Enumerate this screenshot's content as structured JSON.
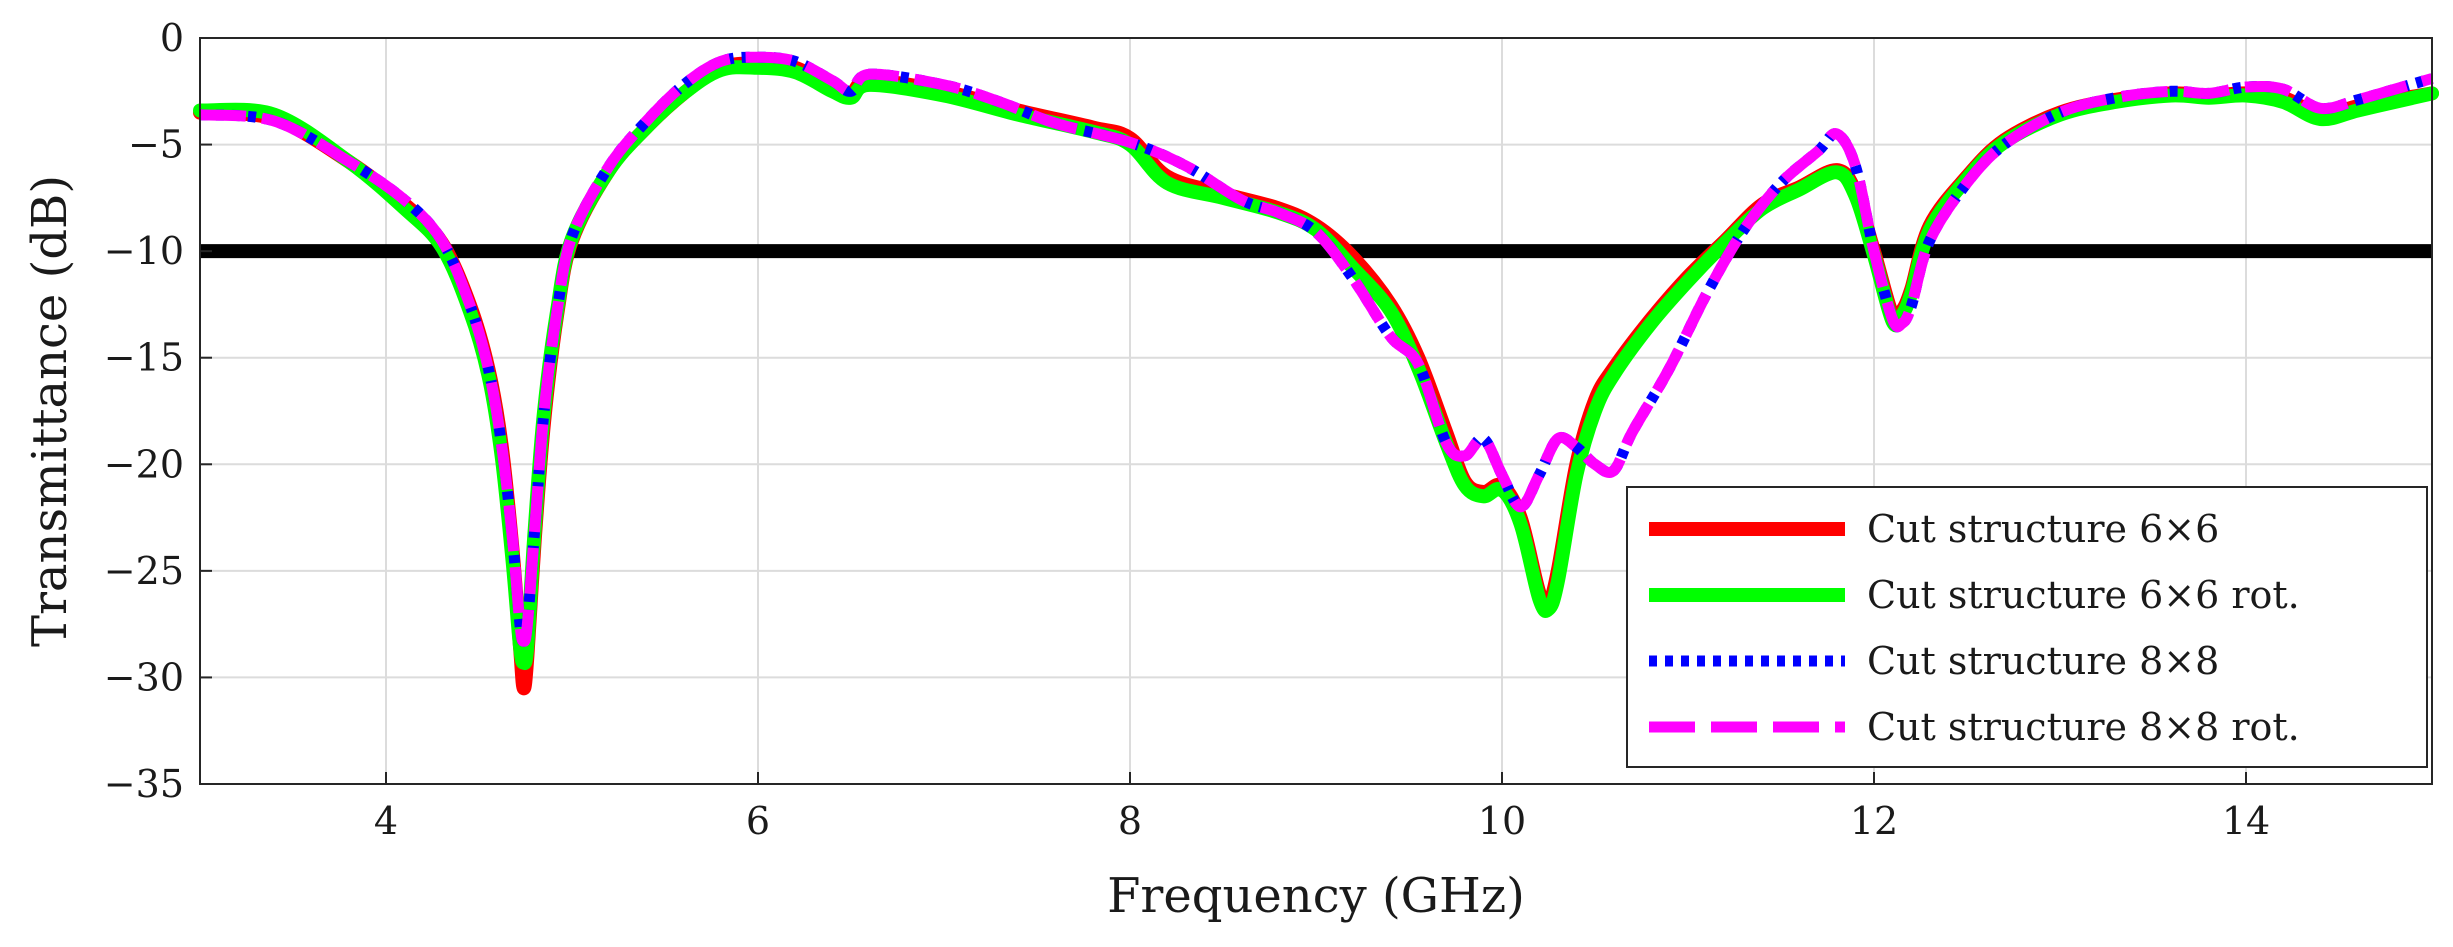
{
  "chart_data": {
    "type": "line",
    "title": "",
    "xlabel": "Frequency (GHz)",
    "ylabel": "Transmittance (dB)",
    "xlim": [
      3,
      15
    ],
    "ylim": [
      -35,
      0
    ],
    "xticks": [
      4,
      6,
      8,
      10,
      12,
      14
    ],
    "xtick_labels": [
      "4",
      "6",
      "8",
      "10",
      "12",
      "14"
    ],
    "yticks": [
      0,
      -5,
      -10,
      -15,
      -20,
      -25,
      -30,
      -35
    ],
    "ytick_labels": [
      "0",
      "−5",
      "−10",
      "−15",
      "−20",
      "−25",
      "−30",
      "−35"
    ],
    "grid": true,
    "legend_position": "bottom-right",
    "reference_line": {
      "y": -10,
      "color": "#000000"
    },
    "series": [
      {
        "name": "Cut structure 6×6",
        "color": "#ff0000",
        "style": "solid",
        "x": [
          3.0,
          3.4,
          3.8,
          4.1,
          4.3,
          4.45,
          4.55,
          4.62,
          4.68,
          4.72,
          4.74,
          4.76,
          4.8,
          4.85,
          4.92,
          5.0,
          5.2,
          5.4,
          5.6,
          5.8,
          6.0,
          6.2,
          6.4,
          6.5,
          6.6,
          7.0,
          7.4,
          7.8,
          8.0,
          8.2,
          8.5,
          8.8,
          9.0,
          9.2,
          9.4,
          9.55,
          9.7,
          9.8,
          9.9,
          10.0,
          10.1,
          10.2,
          10.25,
          10.3,
          10.4,
          10.5,
          10.6,
          10.8,
          11.0,
          11.2,
          11.4,
          11.6,
          11.8,
          11.9,
          12.0,
          12.1,
          12.15,
          12.2,
          12.3,
          12.5,
          12.7,
          13.0,
          13.3,
          13.6,
          13.8,
          14.0,
          14.2,
          14.4,
          14.6,
          14.8,
          15.0
        ],
        "y": [
          -3.5,
          -3.8,
          -5.8,
          -7.8,
          -9.6,
          -12.5,
          -15.5,
          -19,
          -24,
          -28.5,
          -30.5,
          -29,
          -23.5,
          -18,
          -13,
          -9.5,
          -6.2,
          -4.2,
          -2.6,
          -1.4,
          -1.2,
          -1.4,
          -2.3,
          -2.6,
          -2.0,
          -2.5,
          -3.4,
          -4.2,
          -4.7,
          -6.5,
          -7.3,
          -8.0,
          -8.8,
          -10.3,
          -12.5,
          -15.0,
          -18.5,
          -20.8,
          -21.3,
          -21.0,
          -22.5,
          -26.0,
          -26.5,
          -25.0,
          -20.0,
          -17.0,
          -15.5,
          -13.2,
          -11.2,
          -9.5,
          -7.8,
          -7.0,
          -6.2,
          -7.2,
          -10.0,
          -13.0,
          -12.8,
          -11.8,
          -8.8,
          -6.5,
          -4.8,
          -3.5,
          -2.9,
          -2.6,
          -2.7,
          -2.6,
          -2.8,
          -3.6,
          -3.2,
          -2.9,
          -2.6
        ]
      },
      {
        "name": "Cut structure 6×6 rot.",
        "color": "#00ff00",
        "style": "solid",
        "x": [
          3.0,
          3.4,
          3.8,
          4.1,
          4.3,
          4.45,
          4.55,
          4.62,
          4.68,
          4.72,
          4.74,
          4.76,
          4.8,
          4.85,
          4.92,
          5.0,
          5.2,
          5.4,
          5.6,
          5.8,
          6.0,
          6.2,
          6.4,
          6.5,
          6.6,
          7.0,
          7.4,
          7.8,
          8.0,
          8.2,
          8.5,
          8.8,
          9.0,
          9.2,
          9.4,
          9.55,
          9.7,
          9.8,
          9.9,
          10.0,
          10.1,
          10.2,
          10.25,
          10.3,
          10.4,
          10.5,
          10.6,
          10.8,
          11.0,
          11.2,
          11.4,
          11.6,
          11.8,
          11.9,
          12.0,
          12.1,
          12.15,
          12.2,
          12.3,
          12.5,
          12.7,
          13.0,
          13.3,
          13.6,
          13.8,
          14.0,
          14.2,
          14.4,
          14.6,
          14.8,
          15.0
        ],
        "y": [
          -3.4,
          -3.6,
          -5.8,
          -8.0,
          -9.8,
          -12.8,
          -15.8,
          -19.5,
          -24.5,
          -28.5,
          -29.3,
          -28.5,
          -23.0,
          -17.5,
          -12.8,
          -9.4,
          -6.2,
          -4.2,
          -2.6,
          -1.5,
          -1.4,
          -1.6,
          -2.5,
          -2.8,
          -2.2,
          -2.7,
          -3.6,
          -4.4,
          -5.0,
          -6.8,
          -7.5,
          -8.2,
          -9.0,
          -10.8,
          -12.8,
          -15.5,
          -19.0,
          -21.0,
          -21.5,
          -21.2,
          -22.8,
          -26.3,
          -26.8,
          -25.5,
          -20.5,
          -17.5,
          -15.8,
          -13.4,
          -11.4,
          -9.6,
          -8.0,
          -7.1,
          -6.3,
          -7.4,
          -10.2,
          -13.3,
          -13.0,
          -12.0,
          -9.0,
          -6.6,
          -4.9,
          -3.6,
          -3.0,
          -2.7,
          -2.8,
          -2.7,
          -3.0,
          -3.8,
          -3.4,
          -3.0,
          -2.6
        ]
      },
      {
        "name": "Cut structure 8×8",
        "color": "#0000ff",
        "style": "dotted",
        "x": [
          3.0,
          3.4,
          3.8,
          4.1,
          4.3,
          4.45,
          4.55,
          4.62,
          4.68,
          4.72,
          4.74,
          4.76,
          4.8,
          4.85,
          4.92,
          5.0,
          5.2,
          5.4,
          5.6,
          5.8,
          6.0,
          6.2,
          6.4,
          6.5,
          6.6,
          7.0,
          7.3,
          7.6,
          8.0,
          8.3,
          8.6,
          8.8,
          9.0,
          9.2,
          9.4,
          9.55,
          9.7,
          9.8,
          9.9,
          10.0,
          10.1,
          10.2,
          10.3,
          10.4,
          10.5,
          10.6,
          10.7,
          10.9,
          11.1,
          11.3,
          11.5,
          11.7,
          11.8,
          11.9,
          12.0,
          12.1,
          12.15,
          12.2,
          12.3,
          12.5,
          12.7,
          13.0,
          13.3,
          13.6,
          13.8,
          14.0,
          14.2,
          14.4,
          14.6,
          14.8,
          15.0
        ],
        "y": [
          -3.6,
          -3.9,
          -5.8,
          -7.6,
          -9.5,
          -12.5,
          -15.5,
          -19,
          -23.5,
          -27.5,
          -28.3,
          -27.5,
          -23.0,
          -17.5,
          -12.8,
          -9.3,
          -6.0,
          -3.9,
          -2.2,
          -1.1,
          -0.9,
          -1.1,
          -2.0,
          -2.5,
          -1.7,
          -2.2,
          -3.0,
          -4.0,
          -4.9,
          -6.0,
          -7.6,
          -8.2,
          -9.1,
          -11.3,
          -14.0,
          -15.3,
          -19.0,
          -19.6,
          -18.8,
          -20.5,
          -22.0,
          -20.5,
          -18.8,
          -19.2,
          -20.0,
          -20.3,
          -18.5,
          -15.5,
          -12.0,
          -9.0,
          -6.8,
          -5.3,
          -4.5,
          -6.0,
          -10.0,
          -13.2,
          -13.4,
          -12.6,
          -9.5,
          -6.8,
          -5.0,
          -3.5,
          -2.8,
          -2.5,
          -2.6,
          -2.3,
          -2.4,
          -3.3,
          -2.9,
          -2.4,
          -1.9
        ]
      },
      {
        "name": "Cut structure 8×8 rot.",
        "color": "#ff00ff",
        "style": "dashed",
        "x": [
          3.0,
          3.4,
          3.8,
          4.1,
          4.3,
          4.45,
          4.55,
          4.62,
          4.68,
          4.72,
          4.74,
          4.76,
          4.8,
          4.85,
          4.92,
          5.0,
          5.2,
          5.4,
          5.6,
          5.8,
          6.0,
          6.2,
          6.4,
          6.5,
          6.6,
          7.0,
          7.3,
          7.6,
          8.0,
          8.3,
          8.6,
          8.8,
          9.0,
          9.2,
          9.4,
          9.55,
          9.7,
          9.8,
          9.9,
          10.0,
          10.1,
          10.2,
          10.3,
          10.4,
          10.5,
          10.6,
          10.7,
          10.9,
          11.1,
          11.3,
          11.5,
          11.7,
          11.8,
          11.9,
          12.0,
          12.1,
          12.15,
          12.2,
          12.3,
          12.5,
          12.7,
          13.0,
          13.3,
          13.6,
          13.8,
          14.0,
          14.2,
          14.4,
          14.6,
          14.8,
          15.0
        ],
        "y": [
          -3.6,
          -3.9,
          -5.8,
          -7.6,
          -9.5,
          -12.5,
          -15.5,
          -19,
          -23.5,
          -27.5,
          -28.3,
          -27.5,
          -23.0,
          -17.5,
          -12.8,
          -9.3,
          -6.0,
          -3.9,
          -2.2,
          -1.1,
          -0.9,
          -1.1,
          -2.0,
          -2.5,
          -1.7,
          -2.2,
          -3.0,
          -4.0,
          -4.9,
          -6.0,
          -7.6,
          -8.2,
          -9.1,
          -11.3,
          -14.0,
          -15.3,
          -19.0,
          -19.6,
          -18.8,
          -20.5,
          -22.0,
          -20.5,
          -18.8,
          -19.2,
          -20.0,
          -20.3,
          -18.5,
          -15.5,
          -12.0,
          -9.0,
          -6.8,
          -5.3,
          -4.5,
          -6.0,
          -10.0,
          -13.2,
          -13.4,
          -12.6,
          -9.5,
          -6.8,
          -5.0,
          -3.5,
          -2.8,
          -2.5,
          -2.6,
          -2.3,
          -2.4,
          -3.3,
          -2.9,
          -2.4,
          -1.9
        ]
      }
    ]
  }
}
